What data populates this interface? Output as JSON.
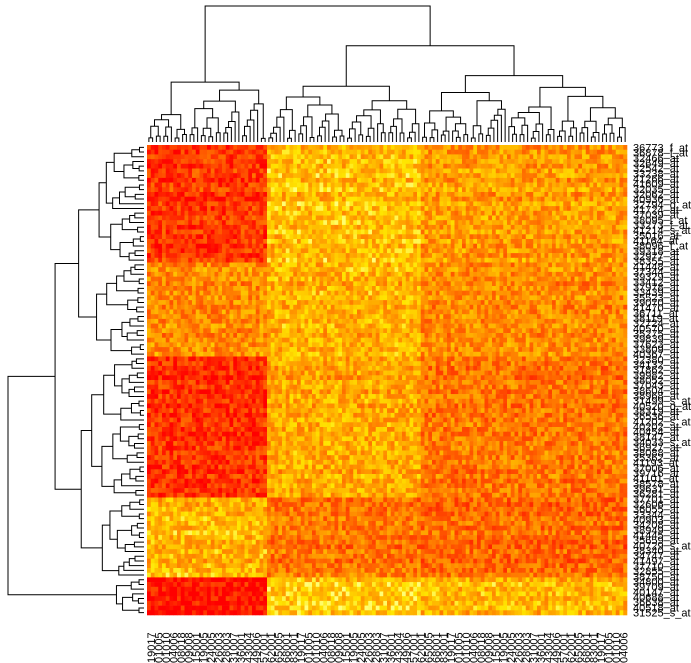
{
  "chart_data": {
    "type": "heatmap",
    "title": "",
    "xlabel": "",
    "ylabel": "",
    "color_scale": {
      "low": "#ff0000",
      "mid": "#ff8c00",
      "high": "#ffff00",
      "description": "heat colors, red = low expression, yellow = high expression"
    },
    "grid": false,
    "n_columns": 128,
    "n_rows": 100,
    "column_labels_sample": [
      "19017",
      "01005",
      "01010",
      "04006",
      "08018",
      "09008",
      "15001",
      "19005",
      "24005",
      "26003",
      "28003",
      "31007",
      "36001",
      "43004",
      "49006",
      "57001",
      "62001",
      "65005",
      "68001",
      "83001"
    ],
    "row_labels": [
      "36773_f_at",
      "36878_f_at",
      "32466_at",
      "32649_at",
      "32542_at",
      "33238_at",
      "41266_at",
      "41609_at",
      "32035_at",
      "32062_at",
      "40936_at",
      "32794_g_at",
      "41724_at",
      "37039_at",
      "38095_i_at",
      "33273_f_at",
      "41214_at",
      "35016_at",
      "41164_at",
      "38096_f_at",
      "39318_at",
      "31525_s_at",
      "35926_s_at",
      "38355_at",
      "41448_at",
      "37344_at",
      "39329_at",
      "33412_at",
      "37978_at",
      "33439_at",
      "35523_at",
      "39070_at",
      "41470_at",
      "36711_at",
      "38119_at",
      "32724_at",
      "40570_at",
      "35275_at",
      "39839_at",
      "37623_at",
      "33809_at",
      "40367_at",
      "32380_at",
      "34132_at",
      "38018_g_at",
      "31862_at",
      "39982_at",
      "38052_at",
      "37043_at",
      "38604_at",
      "38968_at",
      "31499_s_at",
      "40520_g_at",
      "38319_at",
      "36536_at",
      "41202_s_at",
      "40202_at",
      "37043_at",
      "40454_at",
      "38147_at",
      "34033_s_at",
      "36927_at",
      "38088_at",
      "35362_at",
      "41193_at",
      "37006_at",
      "39716_at",
      "41101_at",
      "38578_at",
      "39631_at",
      "36281_at",
      "37701_at",
      "32606_at",
      "36055_at",
      "33344_at",
      "40903_at",
      "34208_at",
      "38949_at",
      "41445_at",
      "35659_at",
      "40729_s_at",
      "38340_at",
      "34747_at",
      "41497_at",
      "37710_at",
      "36878_f_at",
      "32855_at",
      "38750_at",
      "34800_at",
      "39709_at",
      "40147_at",
      "40688_at",
      "40570_at",
      "36638_at",
      "41164_at",
      "35016_at",
      "38096_f_at",
      "40518_at",
      "41214_at",
      "31525_s_at"
    ],
    "row_labels_visible": [
      "36773_f_at",
      "36878_f_at",
      "32466_at",
      "32649_at",
      "32542_at",
      "33238_at",
      "41266_at",
      "41609_at",
      "32035_at",
      "32062_at",
      "40936_at",
      "32794_g_at",
      "41724_at",
      "37039_at",
      "38095_i_at",
      "33273_f_at",
      "41214_s_at",
      "35016_at",
      "41164_at",
      "38096_f_at",
      "39318_at",
      "32977_at",
      "38355_at",
      "41448_at",
      "37344_at",
      "39329_at",
      "33412_at",
      "37978_at",
      "33439_at",
      "35523_at",
      "39070_at",
      "41470_at",
      "36711_at",
      "38119_at",
      "32724_at",
      "40570_at",
      "35275_at",
      "39839_at",
      "37623_at",
      "33809_at",
      "40367_at",
      "32380_at",
      "34132_at",
      "31862_at",
      "39982_at",
      "38052_at",
      "37043_at",
      "38604_at",
      "38968_at",
      "31499_s_at",
      "40520_g_at",
      "38319_at",
      "36536_at",
      "41202_s_at",
      "40202_at",
      "40454_at",
      "38147_at",
      "34033_s_at",
      "36927_at",
      "38088_at",
      "35362_at",
      "41193_at",
      "37006_at",
      "39716_at",
      "41101_at",
      "38578_at",
      "39631_at",
      "36281_at",
      "37701_at",
      "32606_at",
      "36055_at",
      "33344_at",
      "40903_at",
      "34208_at",
      "38949_at",
      "41445_at",
      "35659_at",
      "40729_s_at",
      "38340_at",
      "34747_at",
      "41497_at",
      "37710_at",
      "32855_at",
      "38750_at",
      "34800_at",
      "39709_at",
      "40147_at",
      "40688_at",
      "36638_at",
      "40518_at",
      "31525_s_at"
    ],
    "column_groups": [
      {
        "from": 0,
        "to": 31,
        "level": 0.1
      },
      {
        "from": 32,
        "to": 72,
        "level": 0.72
      },
      {
        "from": 73,
        "to": 127,
        "level": 0.58
      }
    ],
    "row_groups": [
      {
        "from": 0,
        "to": 24,
        "profile": [
          0.22,
          0.75,
          0.62
        ]
      },
      {
        "from": 25,
        "to": 44,
        "profile": [
          0.55,
          0.7,
          0.55
        ]
      },
      {
        "from": 45,
        "to": 74,
        "profile": [
          0.18,
          0.65,
          0.45
        ]
      },
      {
        "from": 75,
        "to": 91,
        "profile": [
          0.7,
          0.45,
          0.4
        ]
      },
      {
        "from": 92,
        "to": 99,
        "profile": [
          0.05,
          0.78,
          0.7
        ]
      }
    ],
    "seed": 7
  }
}
